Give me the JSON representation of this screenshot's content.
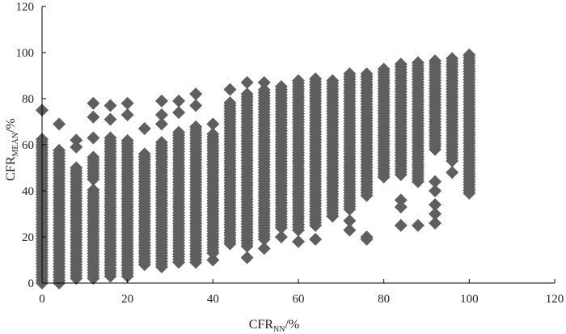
{
  "chart_data": {
    "type": "scatter",
    "title": "",
    "xlabel": "CFR",
    "xlabel_sub": "NN",
    "xlabel_suffix": "/%",
    "ylabel": "CFR",
    "ylabel_sub": "MEAN",
    "ylabel_suffix": "/%",
    "xlim": [
      0,
      120
    ],
    "ylim": [
      0,
      120
    ],
    "xticks": [
      0,
      20,
      40,
      60,
      80,
      100,
      120
    ],
    "yticks": [
      0,
      20,
      40,
      60,
      80,
      100,
      120
    ],
    "grid": false,
    "marker": "diamond",
    "marker_color": "#5f5f5f",
    "columns": [
      {
        "x": 0,
        "ranges": [
          [
            0,
            63
          ]
        ],
        "isolated": [
          75
        ]
      },
      {
        "x": 4,
        "ranges": [
          [
            0,
            58
          ]
        ],
        "isolated": [
          69
        ]
      },
      {
        "x": 8,
        "ranges": [
          [
            2,
            51
          ]
        ],
        "isolated": [
          59,
          62
        ]
      },
      {
        "x": 12,
        "ranges": [
          [
            2,
            41
          ],
          [
            45,
            55
          ]
        ],
        "isolated": [
          63,
          72,
          78
        ]
      },
      {
        "x": 16,
        "ranges": [
          [
            3,
            64
          ]
        ],
        "isolated": [
          71,
          77
        ]
      },
      {
        "x": 20,
        "ranges": [
          [
            3,
            62
          ]
        ],
        "isolated": [
          73,
          78
        ]
      },
      {
        "x": 24,
        "ranges": [
          [
            8,
            57
          ]
        ],
        "isolated": [
          67
        ]
      },
      {
        "x": 28,
        "ranges": [
          [
            7,
            61
          ]
        ],
        "isolated": [
          69,
          73,
          79
        ]
      },
      {
        "x": 32,
        "ranges": [
          [
            9,
            66
          ]
        ],
        "isolated": [
          74,
          79
        ]
      },
      {
        "x": 36,
        "ranges": [
          [
            9,
            68
          ]
        ],
        "isolated": [
          77,
          82
        ]
      },
      {
        "x": 40,
        "ranges": [
          [
            13,
            65
          ]
        ],
        "isolated": [
          10,
          69
        ]
      },
      {
        "x": 44,
        "ranges": [
          [
            17,
            79
          ]
        ],
        "isolated": [
          84
        ]
      },
      {
        "x": 48,
        "ranges": [
          [
            16,
            83
          ]
        ],
        "isolated": [
          11,
          87
        ]
      },
      {
        "x": 52,
        "ranges": [
          [
            19,
            84
          ]
        ],
        "isolated": [
          15,
          87
        ]
      },
      {
        "x": 56,
        "ranges": [
          [
            24,
            86
          ]
        ],
        "isolated": [
          20
        ]
      },
      {
        "x": 60,
        "ranges": [
          [
            23,
            88
          ]
        ],
        "isolated": [
          18
        ]
      },
      {
        "x": 64,
        "ranges": [
          [
            25,
            89
          ]
        ],
        "isolated": [
          19
        ]
      },
      {
        "x": 68,
        "ranges": [
          [
            29,
            88
          ]
        ],
        "isolated": []
      },
      {
        "x": 72,
        "ranges": [
          [
            32,
            91
          ]
        ],
        "isolated": [
          23,
          27
        ]
      },
      {
        "x": 76,
        "ranges": [
          [
            38,
            91
          ]
        ],
        "isolated": [
          19,
          20
        ]
      },
      {
        "x": 80,
        "ranges": [
          [
            46,
            93
          ]
        ],
        "isolated": []
      },
      {
        "x": 84,
        "ranges": [
          [
            47,
            95
          ]
        ],
        "isolated": [
          25,
          33,
          36
        ]
      },
      {
        "x": 88,
        "ranges": [
          [
            44,
            96
          ]
        ],
        "isolated": [
          25
        ]
      },
      {
        "x": 92,
        "ranges": [
          [
            58,
            97
          ]
        ],
        "isolated": [
          26,
          30,
          34,
          40,
          44
        ]
      },
      {
        "x": 96,
        "ranges": [
          [
            53,
            98
          ]
        ],
        "isolated": [
          48
        ]
      },
      {
        "x": 100,
        "ranges": [
          [
            39,
            100
          ]
        ],
        "isolated": []
      }
    ]
  }
}
